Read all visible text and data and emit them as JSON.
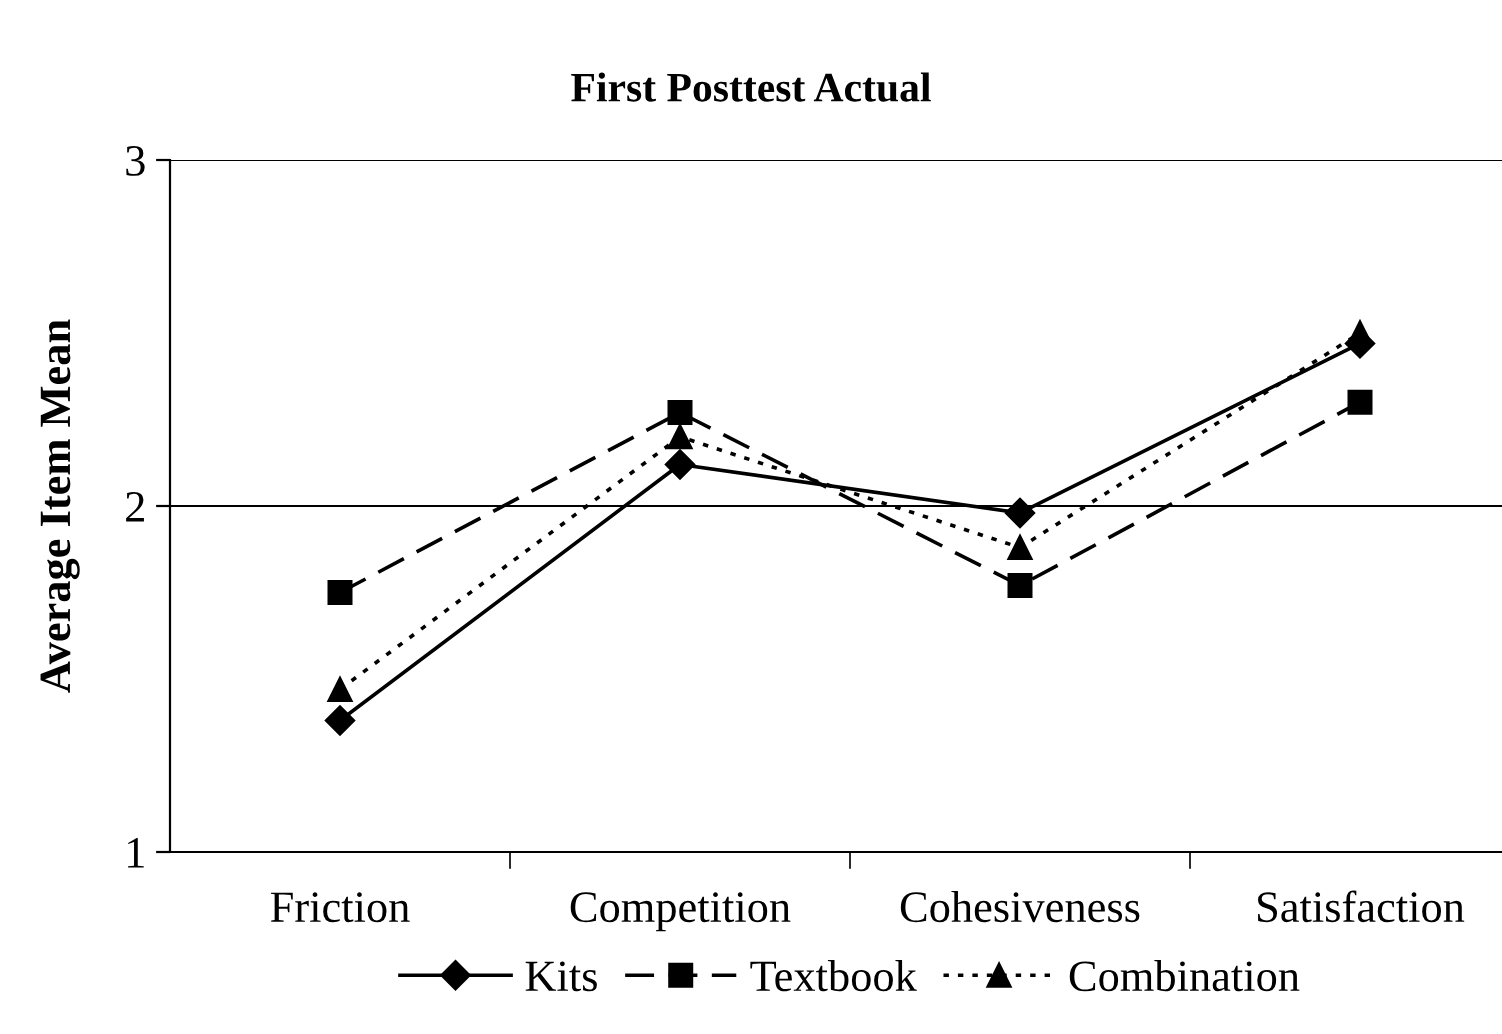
{
  "chart_data": {
    "type": "line",
    "title": "First Posttest Actual",
    "ylabel": "Average Item Mean",
    "categories": [
      "Friction",
      "Competition",
      "Cohesiveness",
      "Satisfaction"
    ],
    "series": [
      {
        "name": "Kits",
        "color": "#000000",
        "marker": "diamond",
        "line_style": "solid",
        "values": [
          1.38,
          2.12,
          1.98,
          2.47
        ]
      },
      {
        "name": "Textbook",
        "color": "#000000",
        "marker": "square",
        "line_style": "dashed",
        "values": [
          1.75,
          2.27,
          1.77,
          2.3
        ]
      },
      {
        "name": "Combination",
        "color": "#000000",
        "marker": "triangle",
        "line_style": "dotted",
        "values": [
          1.47,
          2.2,
          1.88,
          2.5
        ]
      }
    ],
    "ylim": [
      1,
      3
    ],
    "yticks": [
      1,
      2,
      3
    ],
    "grid": "y",
    "legend": "bottom"
  }
}
